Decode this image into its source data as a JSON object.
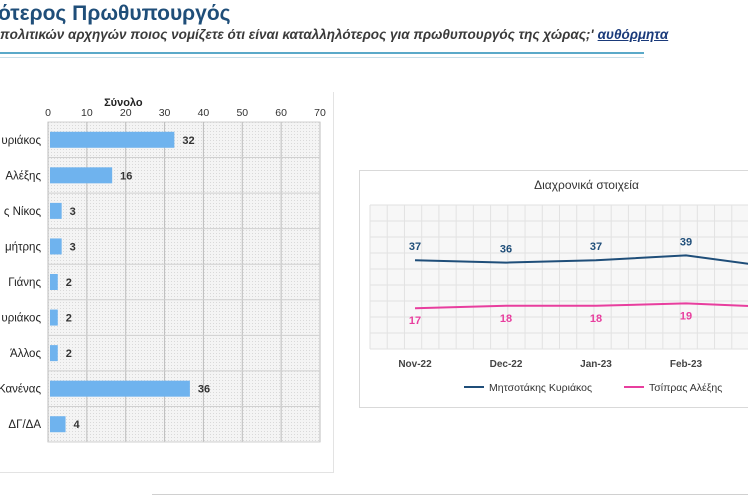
{
  "header": {
    "title": "ότερος Πρωθυπουργός",
    "subtitle": "πολιτικών αρχηγών ποιος νομίζετε ότι είναι καταλληλότερος για πρωθυπουργός της χώρας;'",
    "subtitle_link": "αυθόρμητα"
  },
  "chart_data": [
    {
      "type": "bar",
      "orientation": "horizontal",
      "title": "Σύνολο",
      "categories": [
        "υριάκος",
        "Αλέξης",
        "ς Νίκος",
        "μήτρης",
        "Γιάνης",
        "υριάκος",
        "Άλλος",
        "Κανένας",
        "ΔΓ/ΔΑ"
      ],
      "values": [
        32,
        16,
        3,
        3,
        2,
        2,
        2,
        36,
        4
      ],
      "xlim": [
        0,
        70
      ],
      "xticks": [
        0,
        10,
        20,
        30,
        40,
        50,
        60,
        70
      ],
      "bar_color": "#6fb3ee",
      "grid": true
    },
    {
      "type": "line",
      "title": "Διαχρονικά στοιχεία",
      "categories": [
        "Nov-22",
        "Dec-22",
        "Jan-23",
        "Feb-23"
      ],
      "series": [
        {
          "name": "Μητσοτάκης Κυριάκος",
          "values": [
            37,
            36,
            37,
            39
          ],
          "color": "#1f4e79"
        },
        {
          "name": "Τσίπρας Αλέξης",
          "values": [
            17,
            18,
            18,
            19
          ],
          "color": "#e83e9e"
        }
      ],
      "grid": true,
      "legend": "bottom"
    }
  ]
}
